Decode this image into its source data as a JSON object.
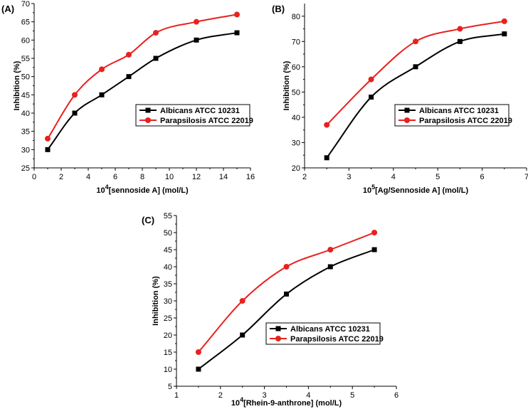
{
  "colors": {
    "series1": "#000000",
    "series2": "#e8211f"
  },
  "chart_data": [
    {
      "type": "line",
      "panel_label": "(A)",
      "title": "",
      "xlabel_sup": "4",
      "xlabel_pre": "10",
      "xlabel_post": "[sennoside A] (mol/L)",
      "ylabel": "Inhibition (%)",
      "xlim": [
        0,
        16
      ],
      "ylim": [
        25,
        70
      ],
      "xticks": [
        0,
        2,
        4,
        6,
        8,
        10,
        12,
        14,
        16
      ],
      "yticks": [
        25,
        30,
        35,
        40,
        45,
        50,
        55,
        60,
        65,
        70
      ],
      "legend_position": "center-right",
      "x": [
        1,
        3,
        5,
        7,
        9,
        12,
        15
      ],
      "series": [
        {
          "name": "Albicans ATCC 10231",
          "marker": "square",
          "values": [
            30,
            40,
            45,
            50,
            55,
            60,
            62
          ]
        },
        {
          "name": "Parapsilosis ATCC 22019",
          "marker": "circle",
          "values": [
            33,
            45,
            52,
            56,
            62,
            65,
            67
          ]
        }
      ]
    },
    {
      "type": "line",
      "panel_label": "(B)",
      "title": "",
      "xlabel_sup": "5",
      "xlabel_pre": "10",
      "xlabel_post": "[Ag/Sennoside A] (mol/L)",
      "ylabel": "Inhibition (%)",
      "xlim": [
        2,
        7
      ],
      "ylim": [
        20,
        85
      ],
      "xticks": [
        2,
        3,
        4,
        5,
        6,
        7
      ],
      "yticks": [
        20,
        30,
        40,
        50,
        60,
        70,
        80
      ],
      "legend_position": "center-right",
      "x": [
        2.5,
        3.5,
        4.5,
        5.5,
        6.5
      ],
      "series": [
        {
          "name": "Albicans ATCC 10231",
          "marker": "square",
          "values": [
            24,
            48,
            60,
            70,
            73
          ]
        },
        {
          "name": "Parapsilosis ATCC 22019",
          "marker": "circle",
          "values": [
            37,
            55,
            70,
            75,
            78
          ]
        }
      ]
    },
    {
      "type": "line",
      "panel_label": "(C)",
      "title": "",
      "xlabel_sup": "4",
      "xlabel_pre": "10",
      "xlabel_post": "[Rhein-9-anthrone] (mol/L)",
      "ylabel": "Inhibition (%)",
      "xlim": [
        1,
        6
      ],
      "ylim": [
        5,
        55
      ],
      "xticks": [
        1,
        2,
        3,
        4,
        5,
        6
      ],
      "yticks": [
        5,
        10,
        15,
        20,
        25,
        30,
        35,
        40,
        45,
        50,
        55
      ],
      "legend_position": "center-right",
      "x": [
        1.5,
        2.5,
        3.5,
        4.5,
        5.5
      ],
      "series": [
        {
          "name": "Albicans ATCC 10231",
          "marker": "square",
          "values": [
            10,
            20,
            32,
            40,
            45
          ]
        },
        {
          "name": "Parapsilosis ATCC 22019",
          "marker": "circle",
          "values": [
            15,
            30,
            40,
            45,
            50
          ]
        }
      ]
    }
  ]
}
